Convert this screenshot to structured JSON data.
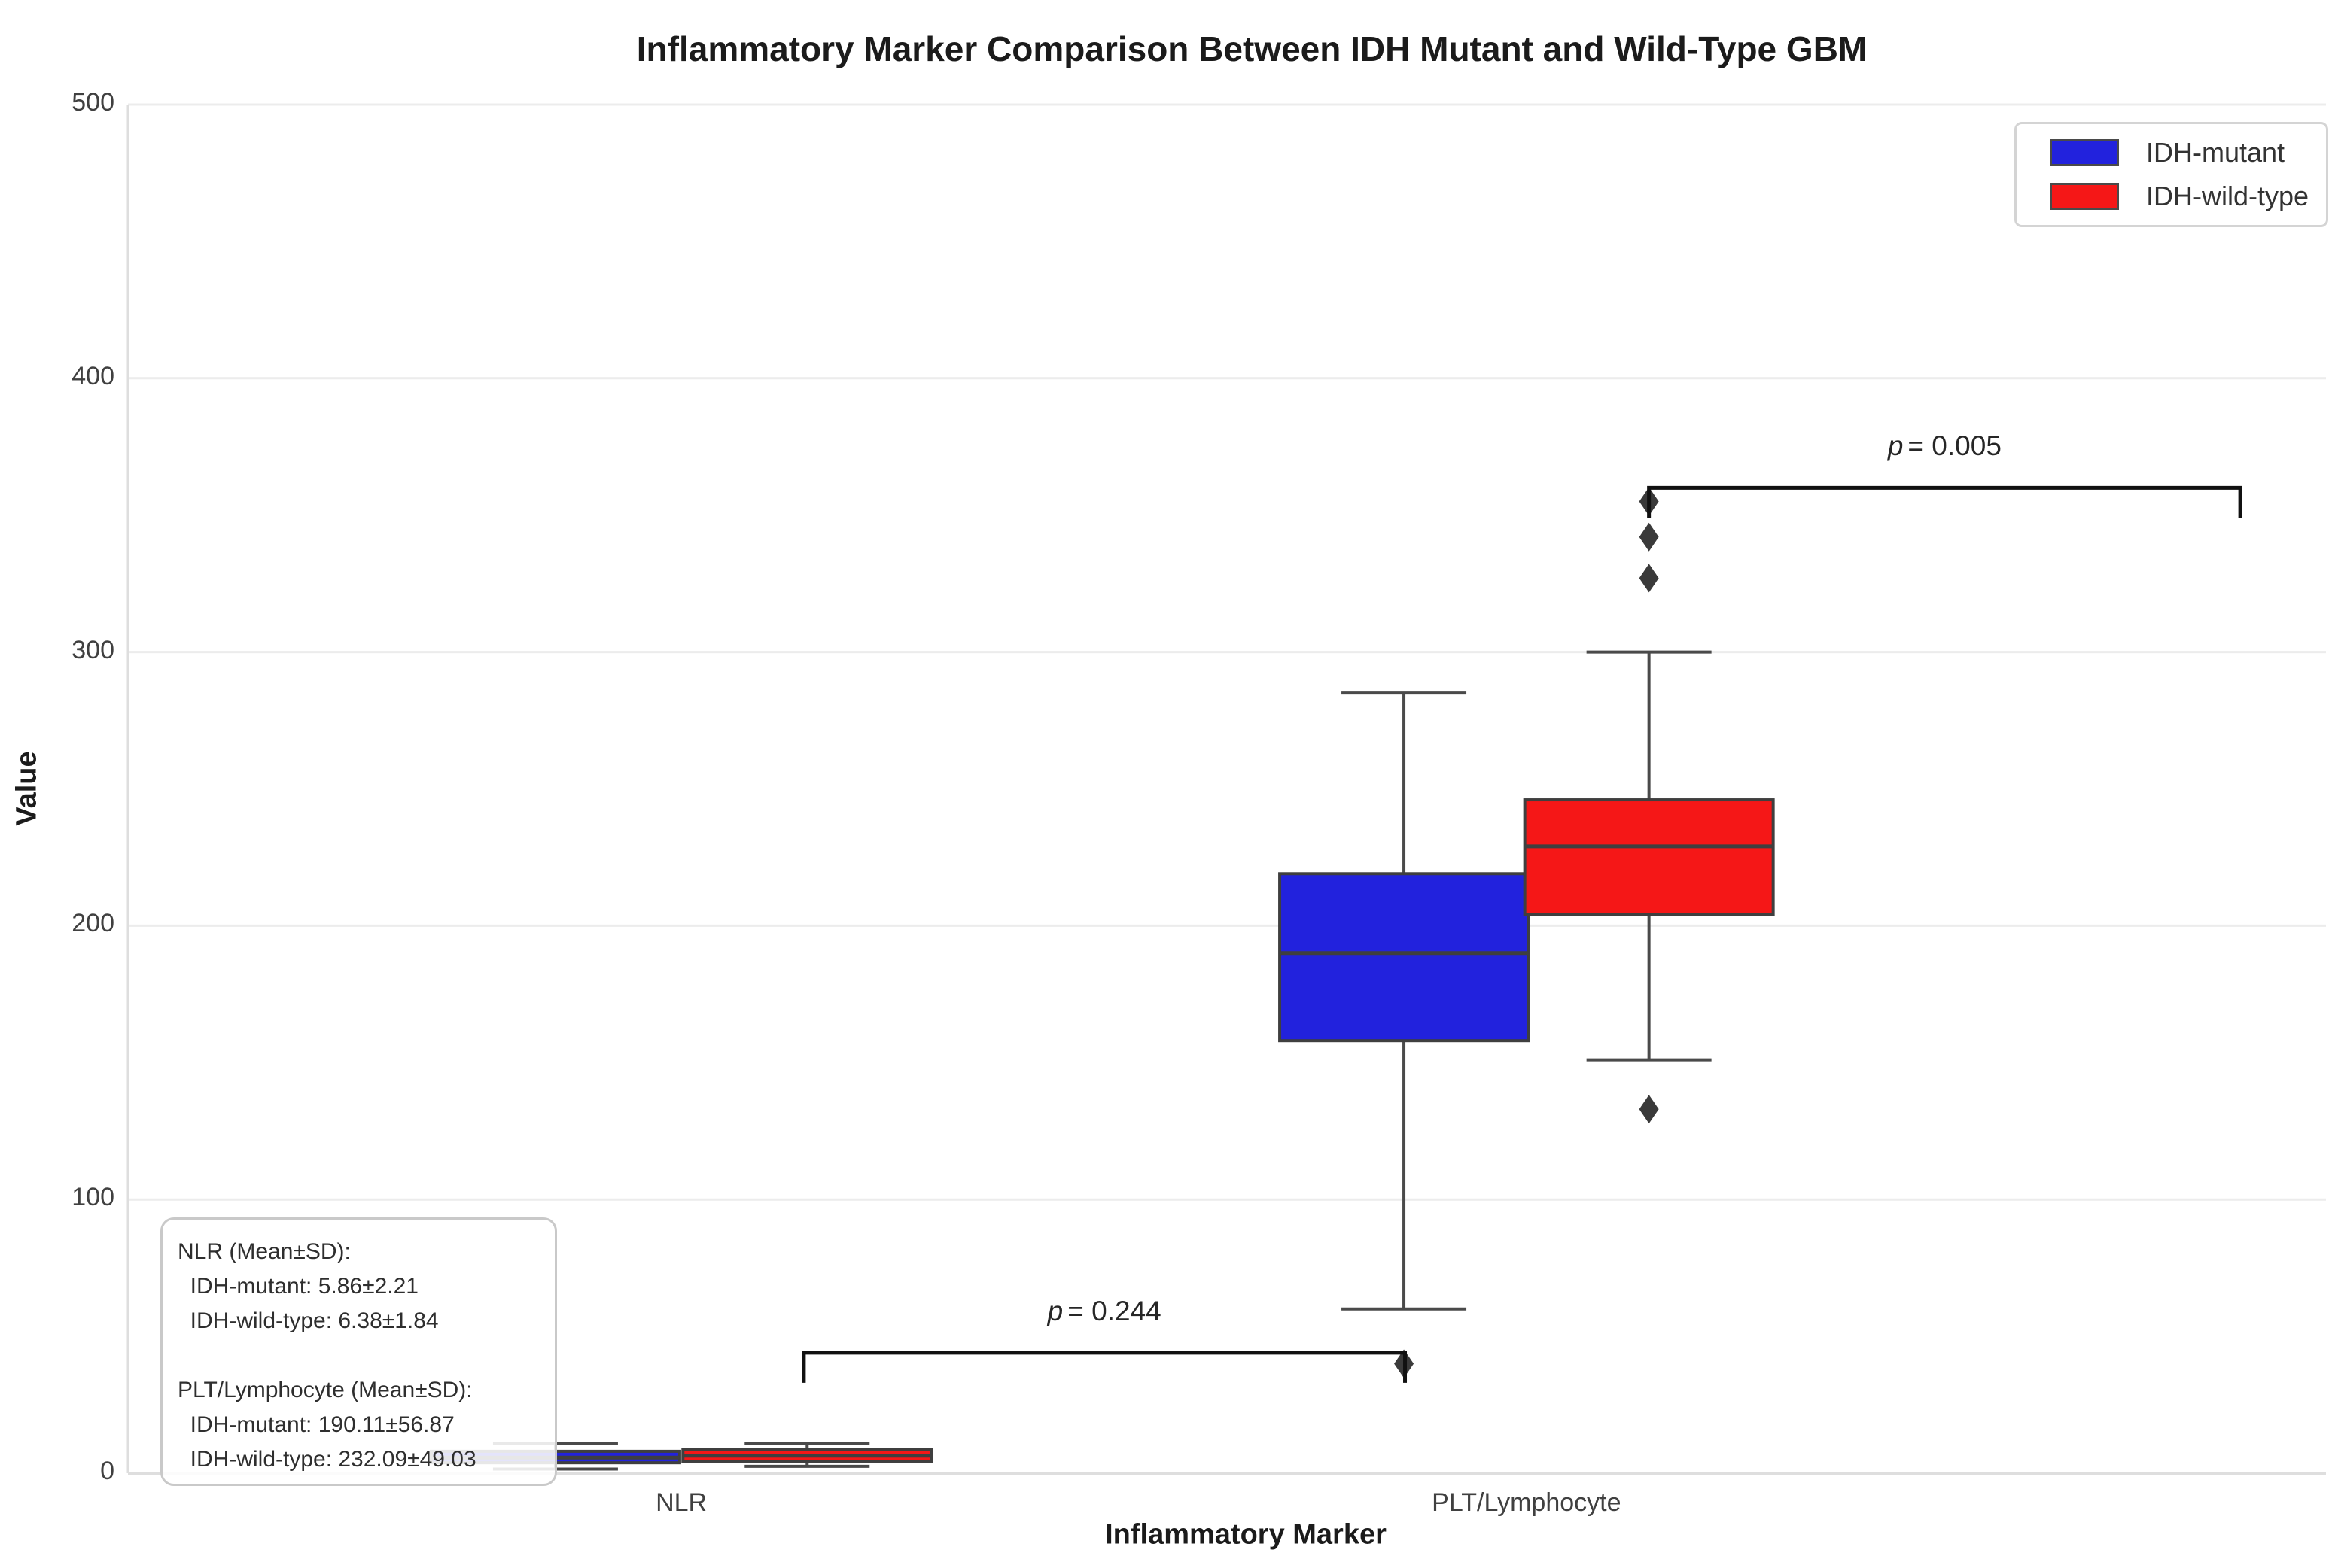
{
  "title": "Inflammatory Marker Comparison Between IDH Mutant and Wild-Type GBM",
  "axes": {
    "y_label": "Value",
    "x_label": "Inflammatory Marker",
    "y_ticks": [
      "0",
      "100",
      "200",
      "300",
      "400",
      "500"
    ],
    "x_tick_labels": [
      "NLR",
      "PLT/Lymphocyte"
    ]
  },
  "legend": {
    "items": [
      {
        "label": "IDH-mutant",
        "color": "#2222dd"
      },
      {
        "label": "IDH-wild-type",
        "color": "#f51717"
      }
    ]
  },
  "stats_box": {
    "lines": [
      "NLR (Mean±SD):",
      "  IDH-mutant: 5.86±2.21",
      "  IDH-wild-type: 6.38±1.84",
      "",
      "PLT/Lymphocyte (Mean±SD):",
      "  IDH-mutant: 190.11±56.87",
      "  IDH-wild-type: 232.09±49.03"
    ]
  },
  "chart_data": {
    "type": "boxplot",
    "title": "Inflammatory Marker Comparison Between IDH Mutant and Wild-Type GBM",
    "xlabel": "Inflammatory Marker",
    "ylabel": "Value",
    "ylim": [
      0,
      500
    ],
    "grid": true,
    "legend_position": "upper right",
    "categories": [
      "NLR",
      "PLT/Lymphocyte"
    ],
    "series": [
      {
        "name": "IDH-mutant",
        "color": "#2222dd",
        "boxes": [
          {
            "category": "NLR",
            "whisker_low": 1.5,
            "q1": 3.8,
            "median": 5.7,
            "q3": 8.0,
            "whisker_high": 11.0,
            "outliers": []
          },
          {
            "category": "PLT/Lymphocyte",
            "whisker_low": 60,
            "q1": 158,
            "median": 190,
            "q3": 219,
            "whisker_high": 285,
            "outliers": [
              40
            ]
          }
        ]
      },
      {
        "name": "IDH-wild-type",
        "color": "#f51717",
        "boxes": [
          {
            "category": "NLR",
            "whisker_low": 2.5,
            "q1": 4.4,
            "median": 6.4,
            "q3": 8.6,
            "whisker_high": 10.8,
            "outliers": []
          },
          {
            "category": "PLT/Lymphocyte",
            "whisker_low": 151,
            "q1": 204,
            "median": 229,
            "q3": 246,
            "whisker_high": 300,
            "outliers": [
              355,
              342,
              327,
              133
            ]
          }
        ]
      }
    ],
    "significance_brackets": [
      {
        "p_symbol": "p",
        "value_text": "= 0.244",
        "y_value": 44,
        "x_start_frac": 0.3075,
        "x_end_frac": 0.581
      },
      {
        "p_symbol": "p",
        "value_text": "= 0.005",
        "y_value": 360,
        "x_start_frac": 0.692,
        "x_end_frac": 0.961
      }
    ]
  }
}
